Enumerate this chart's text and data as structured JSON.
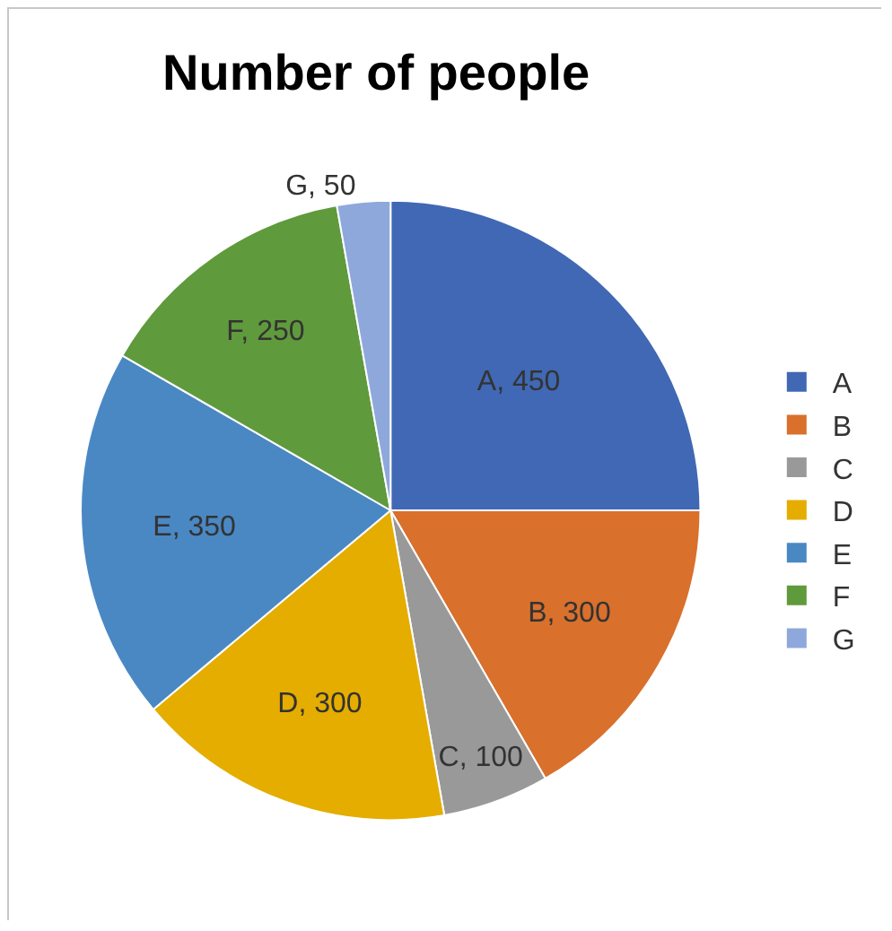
{
  "chart_data": {
    "type": "pie",
    "title": "Number of people",
    "categories": [
      "A",
      "B",
      "C",
      "D",
      "E",
      "F",
      "G"
    ],
    "values": [
      450,
      300,
      100,
      300,
      350,
      250,
      50
    ],
    "colors": [
      "#4068b4",
      "#d9702c",
      "#999999",
      "#e5ad00",
      "#4a88c4",
      "#5f9a3c",
      "#8ea8dc"
    ],
    "value_labels": [
      "A, 450",
      "B, 300",
      "C, 100",
      "D, 300",
      "E, 350",
      "F, 250",
      "G, 50"
    ],
    "legend": "right"
  }
}
